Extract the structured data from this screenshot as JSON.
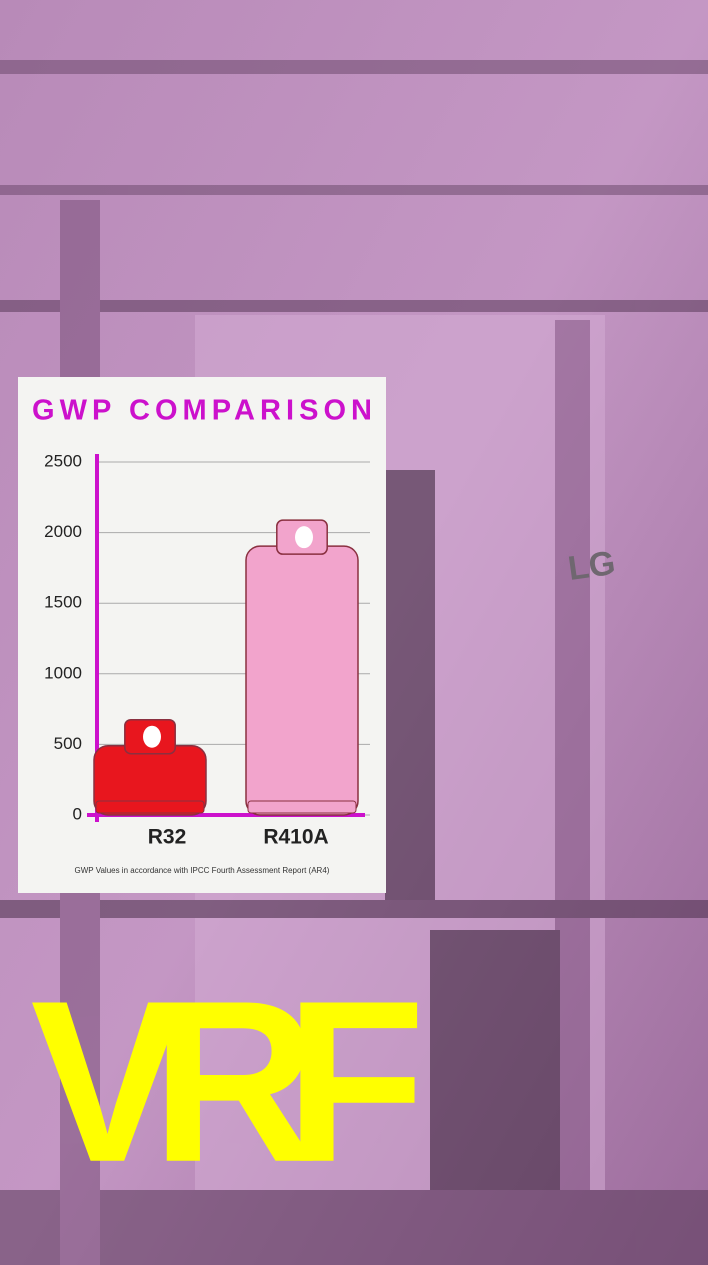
{
  "chart_data": {
    "type": "bar",
    "title": "GWP COMPARISON",
    "categories": [
      "R32",
      "R410A"
    ],
    "values": [
      675,
      2088
    ],
    "colors": [
      "#e8161e",
      "#f2a4cc"
    ],
    "axis_color": "#cc11cc",
    "ylim": [
      0,
      2500
    ],
    "yticks": [
      0,
      500,
      1000,
      1500,
      2000,
      2500
    ],
    "grid": true,
    "footnote": "GWP Values in accordance with IPCC Fourth Assessment Report (AR4)"
  },
  "headline": "VRF",
  "logo": "LG"
}
